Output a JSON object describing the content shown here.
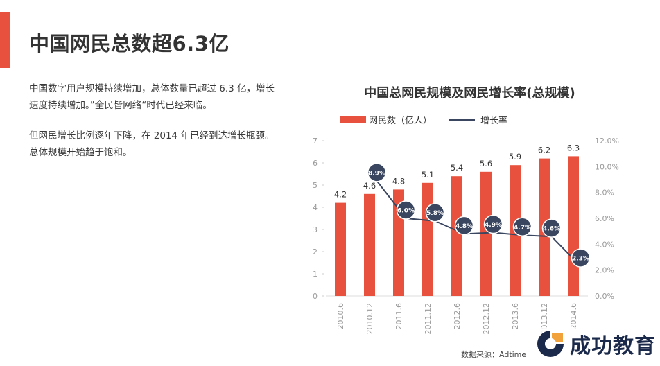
{
  "page": {
    "title": "中国网民总数超6.3亿",
    "paragraphs": [
      "中国数字用户规模持续增加，总体数量已超过 6.3 亿，增长速度持续增加。”全民皆网络“时代已经来临。",
      "但网民增长比例逐年下降，在 2014 年已经到达增长瓶颈。总体规模开始趋于饱和。"
    ],
    "source": "数据来源：Adtime",
    "logo_text": "成功教育"
  },
  "colors": {
    "accent": "#e8513d",
    "bar": "#e8513d",
    "line": "#3a4660",
    "axis_text": "#9a9a9a"
  },
  "chart_data": {
    "type": "bar",
    "title": "中国总网民规模及网民增长率(总规模)",
    "categories": [
      "2010.6",
      "2010.12",
      "2011.6",
      "2011.12",
      "2012.6",
      "2012.12",
      "2013.6",
      "2013.12",
      "2014.6"
    ],
    "series": [
      {
        "name": "网民数（亿人）",
        "type": "bar",
        "axis": "left",
        "values": [
          4.2,
          4.6,
          4.8,
          5.1,
          5.4,
          5.6,
          5.9,
          6.2,
          6.3
        ],
        "labels": [
          "4.2",
          "4.6",
          "4.8",
          "5.1",
          "5.4",
          "5.6",
          "5.9",
          "6.2",
          "6.3"
        ]
      },
      {
        "name": "增长率",
        "type": "line",
        "axis": "right",
        "values": [
          null,
          8.9,
          6.0,
          5.8,
          4.8,
          4.9,
          4.7,
          4.6,
          2.3
        ],
        "labels": [
          "",
          "8.9%",
          "6.0%",
          "5.8%",
          "4.8%",
          "4.9%",
          "4.7%",
          "4.6%",
          "2.3%"
        ]
      }
    ],
    "ylim_left": [
      0,
      7
    ],
    "yticks_left": [
      "0",
      "1",
      "2",
      "3",
      "4",
      "5",
      "6",
      "7"
    ],
    "ylim_right": [
      0,
      12
    ],
    "yticks_right": [
      "0.0%",
      "2.0%",
      "4.0%",
      "6.0%",
      "8.0%",
      "10.0%",
      "12.0%"
    ],
    "legend_position": "top-left",
    "grid": false
  }
}
